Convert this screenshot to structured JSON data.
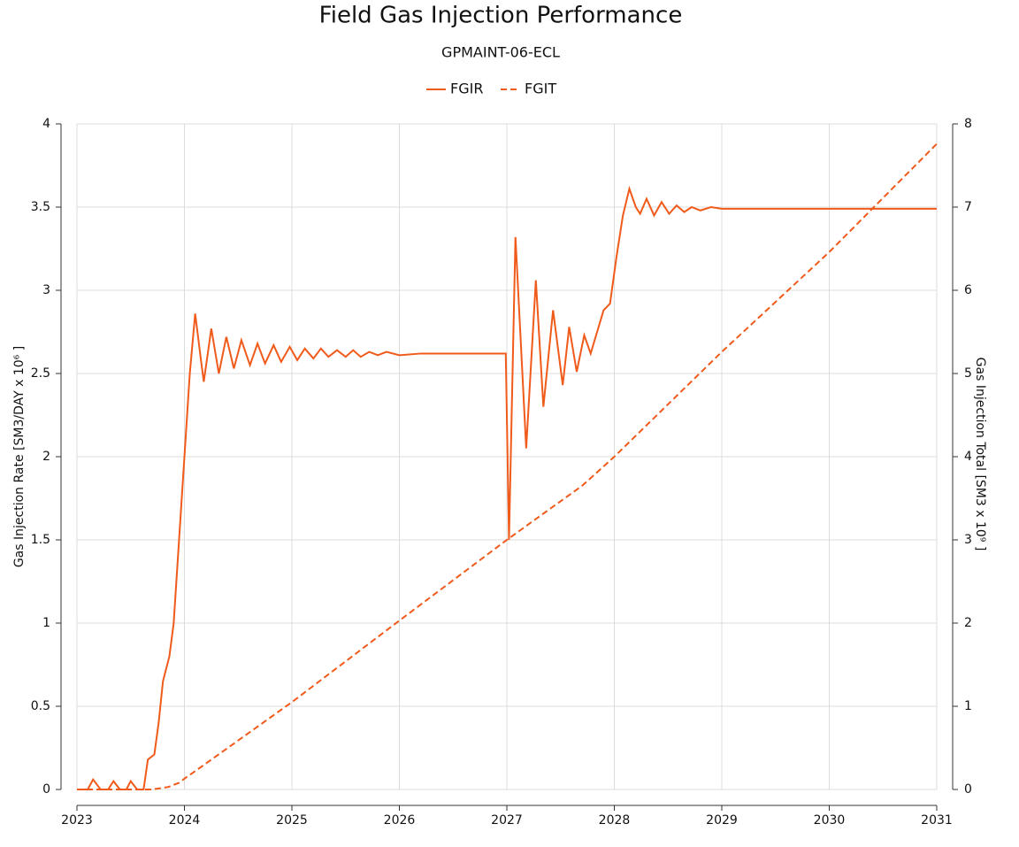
{
  "chart_data": {
    "type": "line",
    "title": "Field Gas Injection Performance",
    "subtitle": "GPMAINT-06-ECL",
    "y_label": "Gas Injection Rate [SM3/DAY x 10⁶ ]",
    "y2_label": "Gas Injection Total [SM3 x 10⁹ ]",
    "xlim": [
      2023,
      2031
    ],
    "xticks": [
      2023,
      2024,
      2025,
      2026,
      2027,
      2028,
      2029,
      2030,
      2031
    ],
    "ylim": [
      0,
      4
    ],
    "yticks": [
      0,
      0.5,
      1,
      1.5,
      2,
      2.5,
      3,
      3.5,
      4
    ],
    "y2lim": [
      0,
      8
    ],
    "y2ticks": [
      0,
      1,
      2,
      3,
      4,
      5,
      6,
      7,
      8
    ],
    "grid": true,
    "legend": "top",
    "series": [
      {
        "name": "FGIR",
        "color": "#f05a1a",
        "line_style": "solid",
        "x": [
          2023.0,
          2023.1,
          2023.15,
          2023.22,
          2023.29,
          2023.34,
          2023.4,
          2023.46,
          2023.5,
          2023.56,
          2023.62,
          2023.66,
          2023.72,
          2023.76,
          2023.8,
          2023.86,
          2023.9,
          2023.95,
          2024.0,
          2024.05,
          2024.1,
          2024.15,
          2024.18,
          2024.25,
          2024.32,
          2024.39,
          2024.46,
          2024.53,
          2024.61,
          2024.68,
          2024.75,
          2024.83,
          2024.9,
          2024.98,
          2025.05,
          2025.12,
          2025.2,
          2025.27,
          2025.34,
          2025.42,
          2025.5,
          2025.57,
          2025.64,
          2025.72,
          2025.8,
          2025.88,
          2026.0,
          2026.2,
          2026.6,
          2026.99,
          2027.02,
          2027.08,
          2027.18,
          2027.27,
          2027.34,
          2027.43,
          2027.52,
          2027.58,
          2027.65,
          2027.72,
          2027.78,
          2027.84,
          2027.9,
          2027.96,
          2028.02,
          2028.08,
          2028.14,
          2028.2,
          2028.24,
          2028.3,
          2028.37,
          2028.44,
          2028.51,
          2028.58,
          2028.65,
          2028.72,
          2028.8,
          2028.9,
          2029.0,
          2029.3,
          2030.2,
          2031.0
        ],
        "values": [
          0,
          0,
          0.06,
          0,
          0,
          0.05,
          0,
          0,
          0.05,
          0,
          0,
          0.18,
          0.21,
          0.4,
          0.65,
          0.8,
          1.0,
          1.5,
          2.0,
          2.5,
          2.86,
          2.6,
          2.45,
          2.77,
          2.5,
          2.72,
          2.53,
          2.7,
          2.55,
          2.68,
          2.56,
          2.67,
          2.57,
          2.66,
          2.58,
          2.65,
          2.59,
          2.65,
          2.6,
          2.64,
          2.6,
          2.64,
          2.6,
          2.63,
          2.61,
          2.63,
          2.61,
          2.62,
          2.62,
          2.62,
          1.5,
          3.32,
          2.05,
          3.06,
          2.3,
          2.88,
          2.43,
          2.78,
          2.51,
          2.73,
          2.62,
          2.75,
          2.88,
          2.92,
          3.2,
          3.45,
          3.61,
          3.5,
          3.46,
          3.55,
          3.45,
          3.53,
          3.46,
          3.51,
          3.47,
          3.5,
          3.48,
          3.5,
          3.49,
          3.49,
          3.49,
          3.49
        ]
      },
      {
        "name": "FGIT",
        "color": "#f05a1a",
        "line_style": "dashed",
        "axis": "y2",
        "x": [
          2023.0,
          2023.7,
          2023.85,
          2023.95,
          2024.0,
          2024.1,
          2025.0,
          2026.0,
          2027.0,
          2027.7,
          2028.0,
          2029.0,
          2030.0,
          2031.0
        ],
        "values": [
          0,
          0,
          0.03,
          0.08,
          0.13,
          0.22,
          1.05,
          2.03,
          3.0,
          3.65,
          4.0,
          5.26,
          6.46,
          7.76
        ]
      }
    ]
  }
}
